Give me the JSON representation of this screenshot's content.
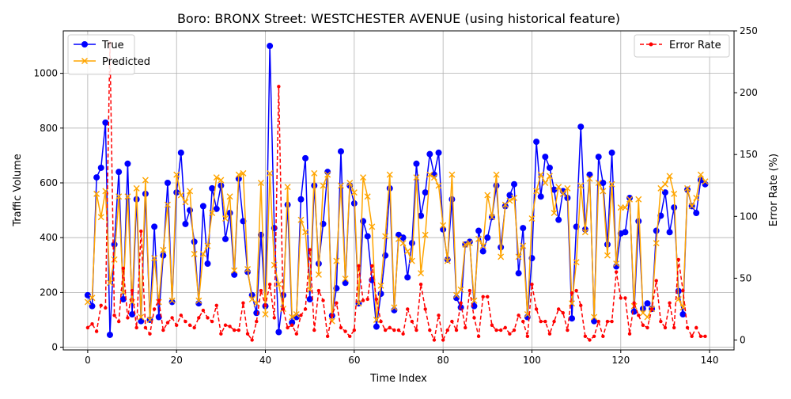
{
  "chart_data": {
    "type": "line",
    "title": "Boro: BRONX Street: WESTCHESTER AVENUE (using historical feature)",
    "xlabel": "Time Index",
    "ylabel": "Traffic Volume",
    "ylabel_right": "Error Rate (%)",
    "xlim": [
      -5.5,
      145.5
    ],
    "ylim": [
      -10,
      1155
    ],
    "ylim_right": [
      -8,
      250
    ],
    "x_ticks": [
      0,
      20,
      40,
      60,
      80,
      100,
      120,
      140
    ],
    "y_ticks": [
      0,
      200,
      400,
      600,
      800,
      1000
    ],
    "y_ticks_right": [
      0,
      50,
      100,
      150,
      200,
      250
    ],
    "grid": true,
    "legend_left": "upper left",
    "legend_right": "upper right",
    "series": [
      {
        "name": "True",
        "axis": "left",
        "color": "#0000ff",
        "marker": "circle",
        "values": [
          190,
          150,
          620,
          655,
          820,
          45,
          375,
          640,
          175,
          670,
          120,
          540,
          95,
          560,
          100,
          440,
          110,
          335,
          600,
          165,
          565,
          710,
          450,
          500,
          385,
          160,
          515,
          305,
          580,
          505,
          590,
          395,
          490,
          265,
          615,
          460,
          275,
          190,
          125,
          410,
          150,
          1100,
          435,
          55,
          190,
          520,
          90,
          110,
          540,
          690,
          175,
          590,
          305,
          450,
          640,
          115,
          215,
          715,
          235,
          590,
          525,
          160,
          460,
          405,
          245,
          75,
          195,
          335,
          580,
          135,
          410,
          400,
          255,
          380,
          670,
          480,
          565,
          705,
          630,
          710,
          430,
          320,
          540,
          180,
          145,
          375,
          385,
          150,
          425,
          350,
          400,
          475,
          590,
          365,
          515,
          555,
          595,
          270,
          435,
          110,
          325,
          750,
          550,
          695,
          655,
          575,
          465,
          570,
          545,
          105,
          440,
          805,
          430,
          630,
          95,
          695,
          600,
          375,
          710,
          295,
          415,
          420,
          545,
          130,
          460,
          140,
          160,
          140,
          425,
          480,
          565,
          420,
          510,
          205,
          120,
          575,
          515,
          490,
          610,
          595
        ]
      },
      {
        "name": "Predicted",
        "axis": "left",
        "color": "#ffa500",
        "marker": "x",
        "values": [
          165,
          180,
          560,
          475,
          570,
          235,
          320,
          550,
          200,
          550,
          165,
          580,
          110,
          610,
          100,
          325,
          165,
          355,
          520,
          170,
          630,
          555,
          530,
          570,
          340,
          170,
          340,
          370,
          490,
          620,
          610,
          470,
          550,
          280,
          630,
          635,
          285,
          175,
          160,
          600,
          120,
          635,
          300,
          230,
          140,
          585,
          110,
          120,
          465,
          420,
          210,
          635,
          265,
          590,
          630,
          95,
          315,
          590,
          250,
          600,
          565,
          160,
          620,
          550,
          440,
          100,
          225,
          405,
          630,
          145,
          395,
          380,
          350,
          315,
          620,
          270,
          410,
          630,
          620,
          590,
          445,
          315,
          630,
          190,
          210,
          375,
          380,
          170,
          395,
          370,
          555,
          475,
          630,
          330,
          520,
          535,
          545,
          330,
          370,
          120,
          470,
          570,
          630,
          600,
          625,
          490,
          585,
          560,
          580,
          160,
          310,
          590,
          420,
          615,
          110,
          600,
          570,
          335,
          595,
          305,
          510,
          510,
          540,
          150,
          540,
          125,
          110,
          140,
          380,
          580,
          595,
          625,
          560,
          175,
          145,
          580,
          515,
          545,
          630,
          605
        ]
      },
      {
        "name": "Error Rate",
        "axis": "right",
        "color": "#ff0000",
        "marker": "dot",
        "dashed": true,
        "values": [
          10,
          13,
          7,
          28,
          26,
          240,
          20,
          15,
          58,
          18,
          40,
          10,
          88,
          10,
          5,
          25,
          32,
          8,
          14,
          18,
          12,
          20,
          15,
          12,
          10,
          18,
          24,
          18,
          15,
          28,
          5,
          12,
          11,
          8,
          8,
          30,
          5,
          0,
          15,
          40,
          28,
          45,
          18,
          205,
          25,
          10,
          12,
          5,
          20,
          25,
          73,
          8,
          40,
          32,
          3,
          20,
          30,
          10,
          7,
          3,
          8,
          60,
          32,
          33,
          60,
          33,
          15,
          8,
          10,
          8,
          8,
          5,
          25,
          15,
          8,
          45,
          25,
          8,
          0,
          20,
          0,
          8,
          15,
          8,
          30,
          10,
          40,
          18,
          3,
          35,
          35,
          12,
          8,
          8,
          10,
          5,
          8,
          20,
          15,
          3,
          45,
          25,
          15,
          15,
          5,
          15,
          25,
          22,
          8,
          38,
          40,
          28,
          3,
          0,
          3,
          15,
          3,
          15,
          15,
          55,
          34,
          34,
          5,
          30,
          20,
          12,
          10,
          25,
          48,
          15,
          10,
          30,
          10,
          65,
          40,
          10,
          3,
          10,
          3,
          3
        ]
      }
    ]
  }
}
